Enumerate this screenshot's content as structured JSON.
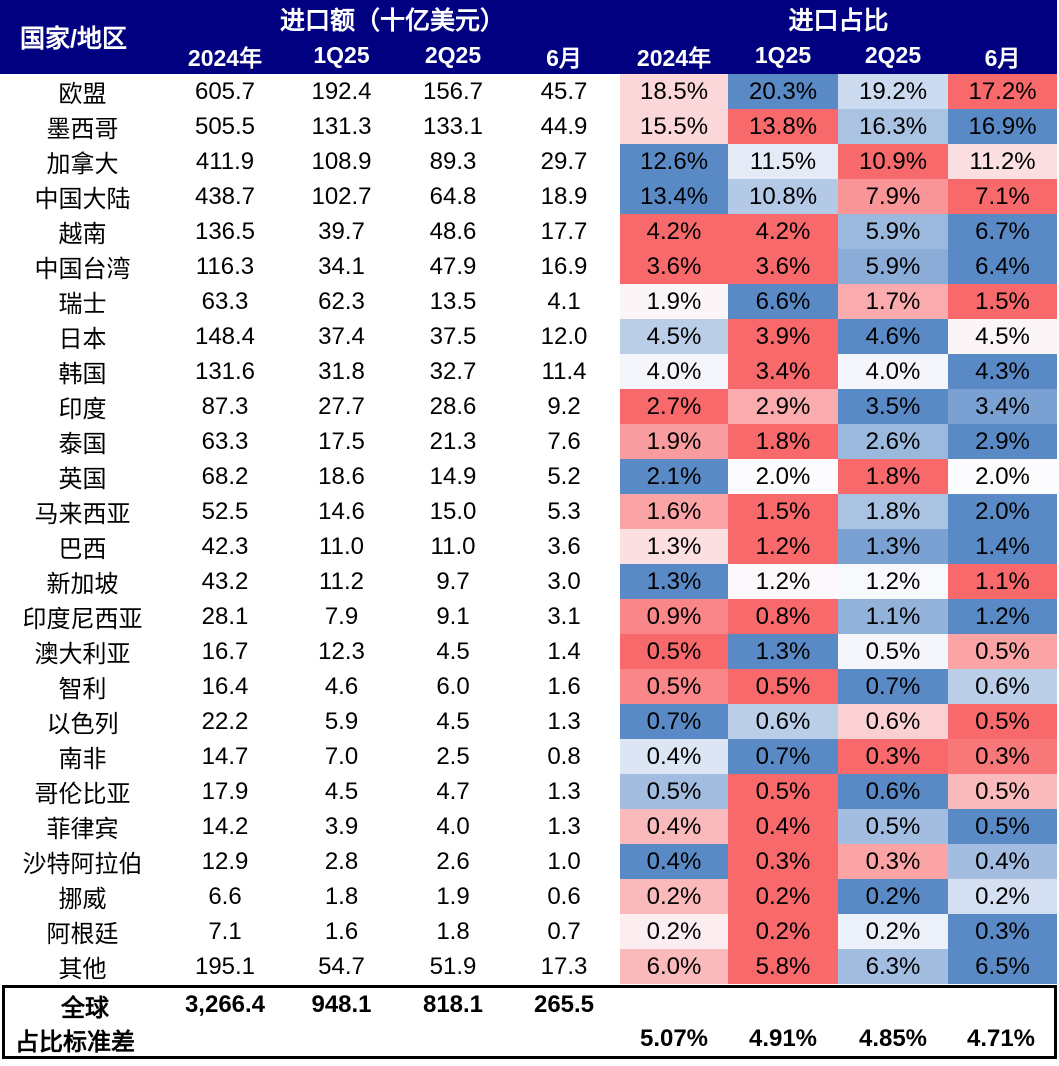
{
  "chart_data": {
    "type": "table",
    "header": {
      "country": "国家/地区",
      "group_amount": "进口额（十亿美元）",
      "group_share": "进口占比",
      "periods": [
        "2024年",
        "1Q25",
        "2Q25",
        "6月"
      ]
    },
    "rows": [
      {
        "name": "欧盟",
        "amount": [
          "605.7",
          "192.4",
          "156.7",
          "45.7"
        ],
        "share": [
          "18.5%",
          "20.3%",
          "19.2%",
          "17.2%"
        ],
        "heat": [
          -0.25,
          1,
          0.3,
          -1
        ]
      },
      {
        "name": "墨西哥",
        "amount": [
          "505.5",
          "131.3",
          "133.1",
          "44.9"
        ],
        "share": [
          "15.5%",
          "13.8%",
          "16.3%",
          "16.9%"
        ],
        "heat": [
          -0.25,
          -1,
          0.5,
          1
        ]
      },
      {
        "name": "加拿大",
        "amount": [
          "411.9",
          "108.9",
          "89.3",
          "29.7"
        ],
        "share": [
          "12.6%",
          "11.5%",
          "10.9%",
          "11.2%"
        ],
        "heat": [
          1,
          0.15,
          -1,
          -0.2
        ]
      },
      {
        "name": "中国大陆",
        "amount": [
          "438.7",
          "102.7",
          "64.8",
          "18.9"
        ],
        "share": [
          "13.4%",
          "10.8%",
          "7.9%",
          "7.1%"
        ],
        "heat": [
          1,
          0.45,
          -0.7,
          -1
        ]
      },
      {
        "name": "越南",
        "amount": [
          "136.5",
          "39.7",
          "48.6",
          "17.7"
        ],
        "share": [
          "4.2%",
          "4.2%",
          "5.9%",
          "6.7%"
        ],
        "heat": [
          -1,
          -1,
          0.6,
          1
        ]
      },
      {
        "name": "中国台湾",
        "amount": [
          "116.3",
          "34.1",
          "47.9",
          "16.9"
        ],
        "share": [
          "3.6%",
          "3.6%",
          "5.9%",
          "6.4%"
        ],
        "heat": [
          -1,
          -1,
          0.7,
          1
        ]
      },
      {
        "name": "瑞士",
        "amount": [
          "63.3",
          "62.3",
          "13.5",
          "4.1"
        ],
        "share": [
          "1.9%",
          "6.6%",
          "1.7%",
          "1.5%"
        ],
        "heat": [
          -0.05,
          1,
          -0.55,
          -1
        ]
      },
      {
        "name": "日本",
        "amount": [
          "148.4",
          "37.4",
          "37.5",
          "12.0"
        ],
        "share": [
          "4.5%",
          "3.9%",
          "4.6%",
          "4.5%"
        ],
        "heat": [
          0.4,
          -1,
          1,
          -0.05
        ]
      },
      {
        "name": "韩国",
        "amount": [
          "131.6",
          "31.8",
          "32.7",
          "11.4"
        ],
        "share": [
          "4.0%",
          "3.4%",
          "4.0%",
          "4.3%"
        ],
        "heat": [
          0.05,
          -1,
          0.05,
          1
        ]
      },
      {
        "name": "印度",
        "amount": [
          "87.3",
          "27.7",
          "28.6",
          "9.2"
        ],
        "share": [
          "2.7%",
          "2.9%",
          "3.5%",
          "3.4%"
        ],
        "heat": [
          -1,
          -0.55,
          1,
          0.8
        ]
      },
      {
        "name": "泰国",
        "amount": [
          "63.3",
          "17.5",
          "21.3",
          "7.6"
        ],
        "share": [
          "1.9%",
          "1.8%",
          "2.6%",
          "2.9%"
        ],
        "heat": [
          -0.65,
          -1,
          0.6,
          1
        ]
      },
      {
        "name": "英国",
        "amount": [
          "68.2",
          "18.6",
          "14.9",
          "5.2"
        ],
        "share": [
          "2.1%",
          "2.0%",
          "1.8%",
          "2.0%"
        ],
        "heat": [
          1,
          0,
          -1,
          0
        ]
      },
      {
        "name": "马来西亚",
        "amount": [
          "52.5",
          "14.6",
          "15.0",
          "5.3"
        ],
        "share": [
          "1.6%",
          "1.5%",
          "1.8%",
          "2.0%"
        ],
        "heat": [
          -0.6,
          -1,
          0.5,
          1
        ]
      },
      {
        "name": "巴西",
        "amount": [
          "42.3",
          "11.0",
          "11.0",
          "3.6"
        ],
        "share": [
          "1.3%",
          "1.2%",
          "1.3%",
          "1.4%"
        ],
        "heat": [
          -0.2,
          -1,
          0.8,
          1
        ]
      },
      {
        "name": "新加坡",
        "amount": [
          "43.2",
          "11.2",
          "9.7",
          "3.0"
        ],
        "share": [
          "1.3%",
          "1.2%",
          "1.2%",
          "1.1%"
        ],
        "heat": [
          1,
          -0.03,
          0.03,
          -1
        ]
      },
      {
        "name": "印度尼西亚",
        "amount": [
          "28.1",
          "7.9",
          "9.1",
          "3.1"
        ],
        "share": [
          "0.9%",
          "0.8%",
          "1.1%",
          "1.2%"
        ],
        "heat": [
          -0.8,
          -1,
          0.65,
          1
        ]
      },
      {
        "name": "澳大利亚",
        "amount": [
          "16.7",
          "12.3",
          "4.5",
          "1.4"
        ],
        "share": [
          "0.5%",
          "1.3%",
          "0.5%",
          "0.5%"
        ],
        "heat": [
          -1,
          1,
          0.05,
          -0.6
        ]
      },
      {
        "name": "智利",
        "amount": [
          "16.4",
          "4.6",
          "6.0",
          "1.6"
        ],
        "share": [
          "0.5%",
          "0.5%",
          "0.7%",
          "0.6%"
        ],
        "heat": [
          -0.8,
          -1,
          1,
          0.4
        ]
      },
      {
        "name": "以色列",
        "amount": [
          "22.2",
          "5.9",
          "4.5",
          "1.3"
        ],
        "share": [
          "0.7%",
          "0.6%",
          "0.6%",
          "0.5%"
        ],
        "heat": [
          1,
          0.4,
          -0.3,
          -1
        ]
      },
      {
        "name": "南非",
        "amount": [
          "14.7",
          "7.0",
          "2.5",
          "0.8"
        ],
        "share": [
          "0.4%",
          "0.7%",
          "0.3%",
          "0.3%"
        ],
        "heat": [
          0.2,
          1,
          -1,
          -0.9
        ]
      },
      {
        "name": "哥伦比亚",
        "amount": [
          "17.9",
          "4.5",
          "4.7",
          "1.3"
        ],
        "share": [
          "0.5%",
          "0.5%",
          "0.6%",
          "0.5%"
        ],
        "heat": [
          0.55,
          -1,
          1,
          -0.45
        ]
      },
      {
        "name": "菲律宾",
        "amount": [
          "14.2",
          "3.9",
          "4.0",
          "1.3"
        ],
        "share": [
          "0.4%",
          "0.4%",
          "0.5%",
          "0.5%"
        ],
        "heat": [
          -0.45,
          -1,
          0.55,
          1
        ]
      },
      {
        "name": "沙特阿拉伯",
        "amount": [
          "12.9",
          "2.8",
          "2.6",
          "1.0"
        ],
        "share": [
          "0.4%",
          "0.3%",
          "0.3%",
          "0.4%"
        ],
        "heat": [
          1,
          -1,
          -0.6,
          0.55
        ]
      },
      {
        "name": "挪威",
        "amount": [
          "6.6",
          "1.8",
          "1.9",
          "0.6"
        ],
        "share": [
          "0.2%",
          "0.2%",
          "0.2%",
          "0.2%"
        ],
        "heat": [
          -0.45,
          -1,
          1,
          0.25
        ]
      },
      {
        "name": "阿根廷",
        "amount": [
          "7.1",
          "1.6",
          "1.8",
          "0.7"
        ],
        "share": [
          "0.2%",
          "0.2%",
          "0.2%",
          "0.3%"
        ],
        "heat": [
          -0.1,
          -1,
          0.1,
          1
        ]
      },
      {
        "name": "其他",
        "amount": [
          "195.1",
          "54.7",
          "51.9",
          "17.3"
        ],
        "share": [
          "6.0%",
          "5.8%",
          "6.3%",
          "6.5%"
        ],
        "heat": [
          -0.45,
          -1,
          0.55,
          1
        ]
      }
    ],
    "total": {
      "name": "全球",
      "amount": [
        "3,266.4",
        "948.1",
        "818.1",
        "265.5"
      ]
    },
    "stdev": {
      "name": "占比标准差",
      "share": [
        "5.07%",
        "4.91%",
        "4.85%",
        "4.71%"
      ]
    }
  },
  "colors": {
    "header": "#000080",
    "low": "#F8696B",
    "mid": "#FCFCFF",
    "high": "#5A8AC6"
  }
}
